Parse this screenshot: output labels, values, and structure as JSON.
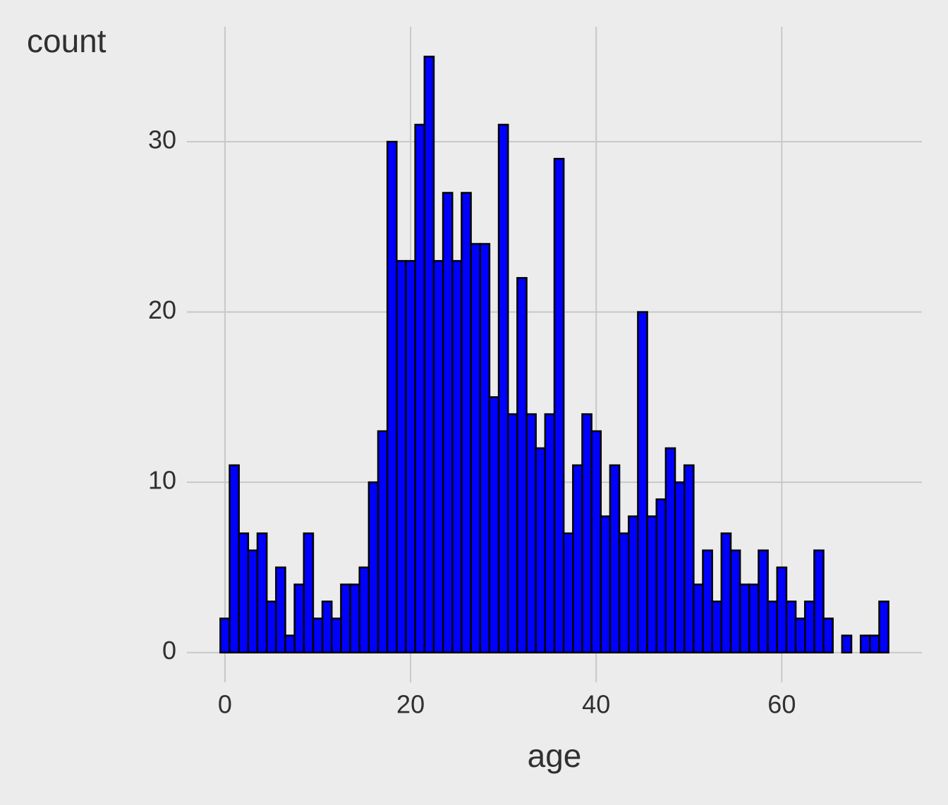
{
  "chart_data": {
    "type": "histogram",
    "x_label": "age",
    "y_label": "count",
    "bins": [
      -0.5,
      0.5,
      1.5,
      2.5,
      3.5,
      4.5,
      5.5,
      6.5,
      7.5,
      8.5,
      9.5,
      10.5,
      11.5,
      12.5,
      13.5,
      14.5,
      15.5,
      16.5,
      17.5,
      18.5,
      19.5,
      20.5,
      21.5,
      22.5,
      23.5,
      24.5,
      25.5,
      26.5,
      27.5,
      28.5,
      29.5,
      30.5,
      31.5,
      32.5,
      33.5,
      34.5,
      35.5,
      36.5,
      37.5,
      38.5,
      39.5,
      40.5,
      41.5,
      42.5,
      43.5,
      44.5,
      45.5,
      46.5,
      47.5,
      48.5,
      49.5,
      50.5,
      51.5,
      52.5,
      53.5,
      54.5,
      55.5,
      56.5,
      57.5,
      58.5,
      59.5,
      60.5,
      61.5,
      62.5,
      63.5,
      64.5,
      65.5,
      66.5,
      67.5,
      68.5,
      69.5,
      70.5,
      71.5
    ],
    "counts": [
      2,
      11,
      7,
      6,
      7,
      3,
      5,
      1,
      4,
      7,
      2,
      3,
      2,
      4,
      4,
      5,
      10,
      13,
      30,
      23,
      23,
      31,
      35,
      23,
      27,
      23,
      27,
      24,
      24,
      15,
      31,
      14,
      22,
      14,
      12,
      14,
      29,
      7,
      11,
      14,
      13,
      8,
      11,
      7,
      8,
      20,
      8,
      9,
      12,
      10,
      11,
      4,
      6,
      3,
      7,
      6,
      4,
      4,
      6,
      3,
      5,
      3,
      2,
      3,
      6,
      2,
      0,
      1,
      0,
      1,
      1,
      3
    ],
    "color": "#0000ff",
    "edgecolor": "#000000",
    "xlim": [
      -4.1,
      75.1
    ],
    "xticks": [
      0,
      20,
      40,
      60
    ],
    "ylim": [
      -1.75,
      36.75
    ],
    "yticks": [
      0,
      10,
      20,
      30
    ],
    "grid": true
  }
}
